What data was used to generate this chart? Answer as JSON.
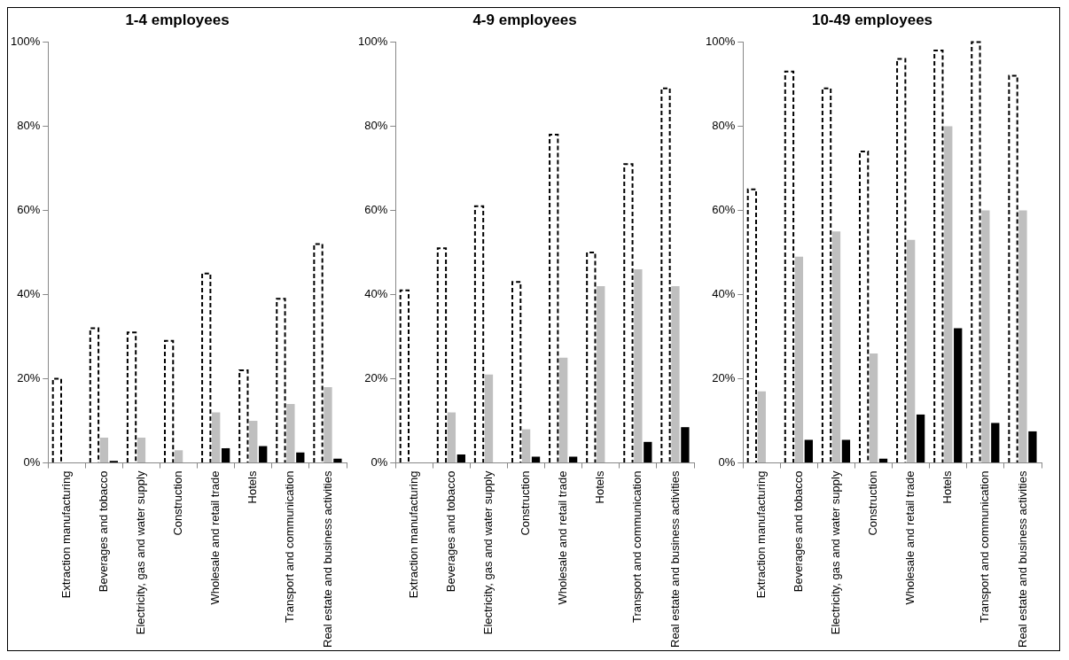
{
  "chart_data": [
    {
      "type": "bar",
      "title": "1-4 employees",
      "categories": [
        "Extraction manufacturing",
        "Beverages and tobacco",
        "Electricity, gas and water supply",
        "Construction",
        "Wholesale and retail trade",
        "Hotels",
        "Transport and communication",
        "Real estate and business activities"
      ],
      "series": [
        {
          "color": "#ffffff",
          "line_style": "dashed",
          "values": [
            20,
            32,
            31,
            29,
            45,
            22,
            39,
            52
          ]
        },
        {
          "color": "#bfbfbf",
          "values": [
            0,
            6,
            6,
            3,
            12,
            10,
            14,
            18
          ]
        },
        {
          "color": "#000000",
          "values": [
            0,
            0.5,
            0,
            0,
            3.5,
            4,
            2.5,
            1
          ]
        }
      ],
      "ylim": [
        0,
        100
      ],
      "yticks": [
        {
          "value": 0,
          "label": "0%"
        },
        {
          "value": 20,
          "label": "20%"
        },
        {
          "value": 40,
          "label": "40%"
        },
        {
          "value": 60,
          "label": "60%"
        },
        {
          "value": 80,
          "label": "80%"
        },
        {
          "value": 100,
          "label": "100%"
        }
      ],
      "grid": false,
      "legend": false
    },
    {
      "type": "bar",
      "title": "4-9 employees",
      "categories": [
        "Extraction manufacturing",
        "Beverages and tobacco",
        "Electricity, gas and water supply",
        "Construction",
        "Wholesale and retail trade",
        "Hotels",
        "Transport and communication",
        "Real estate and business activities"
      ],
      "series": [
        {
          "color": "#ffffff",
          "line_style": "dashed",
          "values": [
            41,
            51,
            61,
            43,
            78,
            50,
            71,
            89
          ]
        },
        {
          "color": "#bfbfbf",
          "values": [
            0,
            12,
            21,
            8,
            25,
            42,
            46,
            42
          ]
        },
        {
          "color": "#000000",
          "values": [
            0,
            2,
            0,
            1.5,
            1.5,
            0,
            5,
            8.5
          ]
        }
      ],
      "ylim": [
        0,
        100
      ],
      "yticks": [
        {
          "value": 0,
          "label": "0%"
        },
        {
          "value": 20,
          "label": "20%"
        },
        {
          "value": 40,
          "label": "40%"
        },
        {
          "value": 60,
          "label": "60%"
        },
        {
          "value": 80,
          "label": "80%"
        },
        {
          "value": 100,
          "label": "100%"
        }
      ],
      "grid": false,
      "legend": false
    },
    {
      "type": "bar",
      "title": "10-49 employees",
      "categories": [
        "Extraction manufacturing",
        "Beverages and tobacco",
        "Electricity, gas and water supply",
        "Construction",
        "Wholesale and retail trade",
        "Hotels",
        "Transport and communication",
        "Real estate and business activities"
      ],
      "series": [
        {
          "color": "#ffffff",
          "line_style": "dashed",
          "values": [
            65,
            93,
            89,
            74,
            96,
            98,
            100,
            92
          ]
        },
        {
          "color": "#bfbfbf",
          "values": [
            17,
            49,
            55,
            26,
            53,
            80,
            60,
            60
          ]
        },
        {
          "color": "#000000",
          "values": [
            0,
            5.5,
            5.5,
            1,
            11.5,
            32,
            9.5,
            7.5
          ]
        }
      ],
      "ylim": [
        0,
        100
      ],
      "yticks": [
        {
          "value": 0,
          "label": "0%"
        },
        {
          "value": 20,
          "label": "20%"
        },
        {
          "value": 40,
          "label": "40%"
        },
        {
          "value": 60,
          "label": "60%"
        },
        {
          "value": 80,
          "label": "80%"
        },
        {
          "value": 100,
          "label": "100%"
        }
      ],
      "grid": false,
      "legend": false
    }
  ]
}
